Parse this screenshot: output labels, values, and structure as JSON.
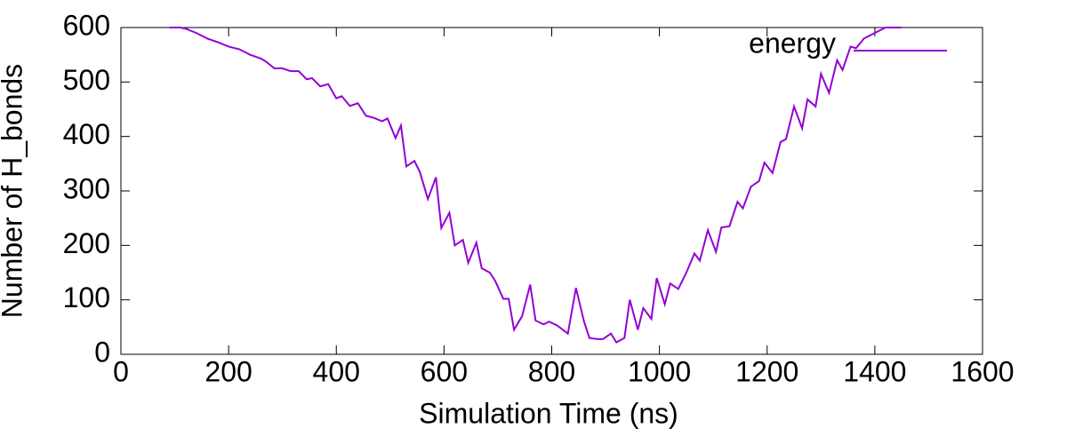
{
  "chart_data": {
    "type": "line",
    "xlabel": "Simulation Time (ns)",
    "ylabel": "Number of H_bonds",
    "x": [
      90,
      110,
      120,
      140,
      160,
      180,
      200,
      220,
      240,
      260,
      270,
      285,
      300,
      315,
      330,
      345,
      355,
      370,
      385,
      400,
      410,
      425,
      440,
      455,
      470,
      485,
      495,
      510,
      520,
      530,
      545,
      555,
      570,
      585,
      595,
      610,
      620,
      635,
      645,
      660,
      670,
      685,
      695,
      710,
      720,
      730,
      745,
      760,
      770,
      785,
      795,
      810,
      830,
      845,
      860,
      870,
      885,
      895,
      910,
      920,
      935,
      945,
      960,
      970,
      985,
      995,
      1010,
      1020,
      1035,
      1050,
      1065,
      1075,
      1090,
      1105,
      1115,
      1130,
      1145,
      1155,
      1170,
      1185,
      1195,
      1210,
      1225,
      1235,
      1250,
      1265,
      1275,
      1290,
      1300,
      1315,
      1330,
      1340,
      1355,
      1365,
      1380,
      1400,
      1420,
      1450
    ],
    "series": [
      {
        "name": "energy",
        "color": "#9400d3",
        "values": [
          600,
          600,
          598,
          590,
          580,
          573,
          565,
          560,
          550,
          543,
          537,
          525,
          525,
          520,
          520,
          505,
          507,
          492,
          496,
          470,
          474,
          456,
          461,
          438,
          434,
          428,
          433,
          397,
          420,
          345,
          355,
          335,
          285,
          325,
          232,
          260,
          200,
          210,
          168,
          205,
          158,
          150,
          135,
          102,
          102,
          45,
          70,
          128,
          62,
          55,
          60,
          53,
          38,
          122,
          60,
          30,
          28,
          28,
          38,
          22,
          30,
          100,
          45,
          85,
          65,
          140,
          92,
          130,
          120,
          150,
          185,
          172,
          228,
          188,
          233,
          235,
          280,
          268,
          308,
          318,
          352,
          333,
          390,
          395,
          455,
          415,
          468,
          455,
          515,
          480,
          540,
          522,
          565,
          562,
          580,
          590,
          600,
          600
        ]
      }
    ],
    "xlim": [
      0,
      1600
    ],
    "xticks": [
      0,
      200,
      400,
      600,
      800,
      1000,
      1200,
      1400,
      1600
    ],
    "ylim": [
      0,
      600
    ],
    "yticks": [
      0,
      100,
      200,
      300,
      400,
      500,
      600
    ],
    "legend": "top-right"
  }
}
